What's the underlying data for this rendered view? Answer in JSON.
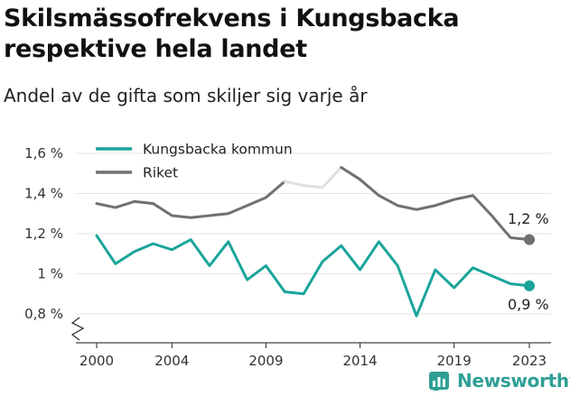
{
  "title": "Skilsmässofrekvens i Kungsbacka respektive hela landet",
  "subtitle": "Andel av de gifta som skiljer sig varje år",
  "brand": {
    "name": "Newsworthy",
    "icon": "newsworthy-logo-icon"
  },
  "colors": {
    "kungsbacka": "#1aa59a",
    "riket": "#707070",
    "riket_highlight": "#e0e0e0",
    "grid": "#e6e6e6",
    "brand": "#2f9f96"
  },
  "chart_data": {
    "type": "line",
    "x": [
      2000,
      2001,
      2002,
      2003,
      2004,
      2005,
      2006,
      2007,
      2008,
      2009,
      2010,
      2011,
      2012,
      2013,
      2014,
      2015,
      2016,
      2017,
      2018,
      2019,
      2020,
      2021,
      2022,
      2023
    ],
    "series": [
      {
        "name": "Kungsbacka kommun",
        "values": [
          1.19,
          1.05,
          1.11,
          1.15,
          1.12,
          1.17,
          1.04,
          1.16,
          0.97,
          1.04,
          0.91,
          0.9,
          1.06,
          1.14,
          1.02,
          1.16,
          1.04,
          0.79,
          1.02,
          0.93,
          1.03,
          0.99,
          0.95,
          0.94
        ]
      },
      {
        "name": "Riket",
        "values": [
          1.35,
          1.33,
          1.36,
          1.35,
          1.29,
          1.28,
          1.29,
          1.3,
          1.34,
          1.38,
          1.46,
          1.44,
          1.43,
          1.53,
          1.47,
          1.39,
          1.34,
          1.32,
          1.34,
          1.37,
          1.39,
          1.29,
          1.18,
          1.17
        ],
        "highlight_range": [
          2009,
          2012
        ]
      }
    ],
    "y_ticks": [
      "0,8 %",
      "1 %",
      "1,2 %",
      "1,4 %",
      "1,6 %"
    ],
    "y_tick_values": [
      0.8,
      1.0,
      1.2,
      1.4,
      1.6
    ],
    "x_ticks": [
      "2000",
      "2004",
      "2009",
      "2014",
      "2019",
      "2023"
    ],
    "x_tick_values": [
      2000,
      2004,
      2009,
      2014,
      2019,
      2023
    ],
    "end_labels": {
      "riket": "1,2 %",
      "kungsbacka": "0,9 %"
    },
    "ylim": [
      0.8,
      1.6
    ],
    "xlim": [
      2000,
      2023
    ],
    "grid": true,
    "legend": "top-left"
  }
}
